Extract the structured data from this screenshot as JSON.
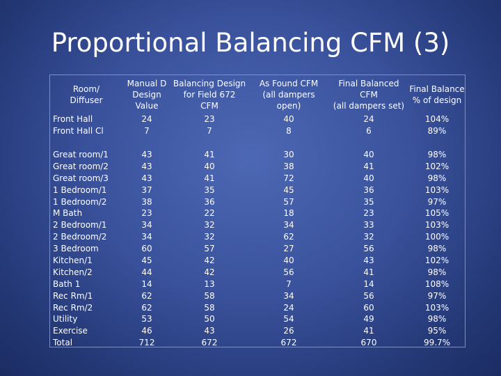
{
  "title": "Proportional Balancing CFM (3)",
  "columns": [
    "Room/\nDiffuser",
    "Manual D\nDesign\nValue",
    "Balancing Design\nfor Field 672\nCFM",
    "As Found CFM\n(all dampers\nopen)",
    "Final Balanced\nCFM\n(all dampers set)",
    "Final Balance\n% of design"
  ],
  "group1": [
    [
      "Front Hall",
      "24",
      "23",
      "40",
      "24",
      "104%"
    ],
    [
      "Front Hall Cl",
      "7",
      "7",
      "8",
      "6",
      "89%"
    ]
  ],
  "group2": [
    [
      "Great room/1",
      "43",
      "41",
      "30",
      "40",
      "98%"
    ],
    [
      "Great room/2",
      "43",
      "40",
      "38",
      "41",
      "102%"
    ],
    [
      "Great room/3",
      "43",
      "41",
      "72",
      "40",
      "98%"
    ],
    [
      "1 Bedroom/1",
      "37",
      "35",
      "45",
      "36",
      "103%"
    ],
    [
      "1 Bedroom/2",
      "38",
      "36",
      "57",
      "35",
      "97%"
    ],
    [
      "M Bath",
      "23",
      "22",
      "18",
      "23",
      "105%"
    ],
    [
      "2 Bedroom/1",
      "34",
      "32",
      "34",
      "33",
      "103%"
    ],
    [
      "2 Bedroom/2",
      "34",
      "32",
      "62",
      "32",
      "100%"
    ],
    [
      "3 Bedroom",
      "60",
      "57",
      "27",
      "56",
      "98%"
    ],
    [
      "Kitchen/1",
      "45",
      "42",
      "40",
      "43",
      "102%"
    ],
    [
      "Kitchen/2",
      "44",
      "42",
      "56",
      "41",
      "98%"
    ],
    [
      "Bath 1",
      "14",
      "13",
      "7",
      "14",
      "108%"
    ],
    [
      "Rec Rm/1",
      "62",
      "58",
      "34",
      "56",
      "97%"
    ],
    [
      "Rec Rm/2",
      "62",
      "58",
      "24",
      "60",
      "103%"
    ],
    [
      "Utility",
      "53",
      "50",
      "54",
      "49",
      "98%"
    ],
    [
      "Exercise",
      "46",
      "43",
      "26",
      "41",
      "95%"
    ],
    [
      "Total",
      "712",
      "672",
      "672",
      "670",
      "99.7%"
    ]
  ]
}
